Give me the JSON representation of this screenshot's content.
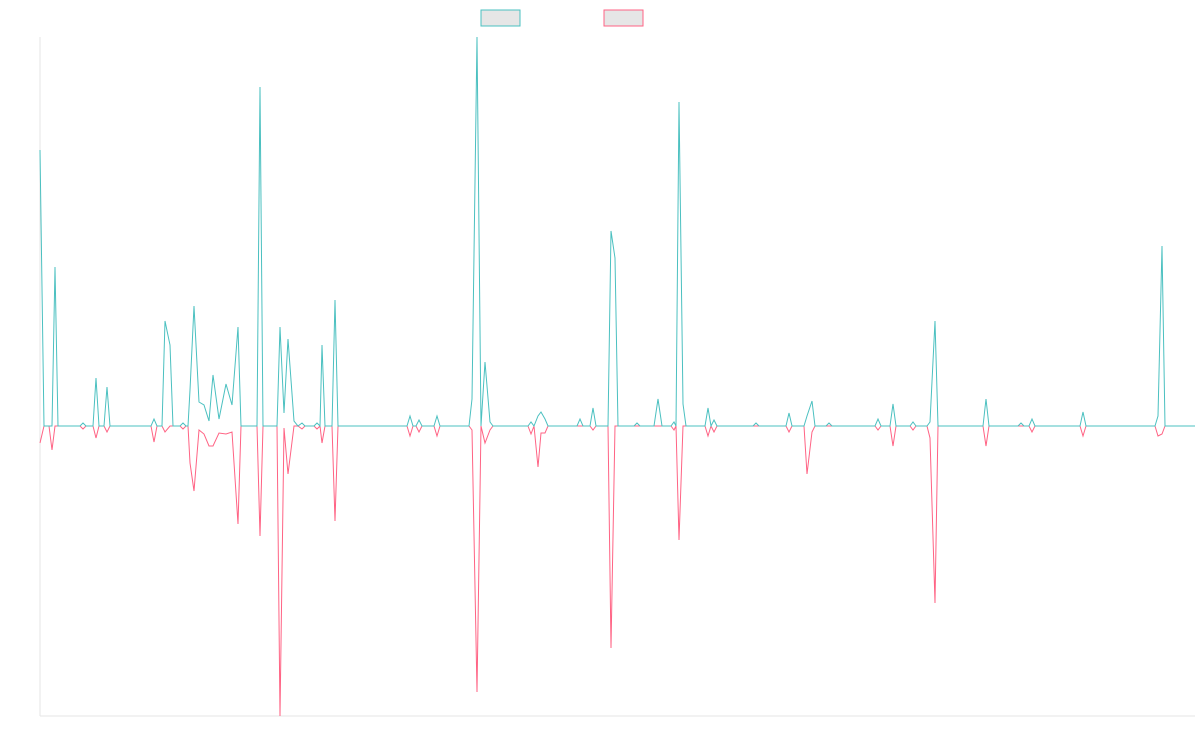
{
  "chart_data": {
    "type": "line",
    "x": [
      0,
      4,
      9,
      12,
      15,
      18,
      40,
      43,
      46,
      53,
      56,
      59,
      64,
      67,
      70,
      111,
      114,
      117,
      122,
      125,
      130,
      133,
      140,
      143,
      146,
      148,
      150,
      154,
      159,
      164,
      169,
      173,
      179,
      186,
      192,
      198,
      201,
      217,
      220,
      223,
      237,
      240,
      244,
      248,
      254,
      258,
      262,
      265,
      274,
      277,
      280,
      282,
      285,
      292,
      295,
      298,
      367,
      370,
      373,
      376,
      379,
      382,
      394,
      397,
      400,
      429,
      432,
      437,
      441,
      445,
      450,
      453,
      488,
      491,
      494,
      498,
      501,
      505,
      508,
      537,
      540,
      543,
      550,
      553,
      556,
      568,
      571,
      575,
      578,
      594,
      597,
      600,
      614,
      618,
      622,
      631,
      634,
      636,
      639,
      643,
      646,
      665,
      668,
      671,
      674,
      677,
      713,
      716,
      719,
      746,
      749,
      752,
      764,
      767,
      772,
      775,
      786,
      789,
      792,
      835,
      838,
      841,
      850,
      853,
      856,
      870,
      873,
      876,
      887,
      890,
      895,
      898,
      943,
      946,
      949,
      978,
      981,
      984,
      989,
      992,
      995,
      1040,
      1043,
      1046,
      1115,
      1118,
      1122,
      1125,
      1155
    ],
    "series": [
      {
        "color": "#ff6384",
        "values": [
          -17,
          0,
          0,
          -24,
          0,
          0,
          0,
          -3,
          0,
          0,
          -12,
          0,
          0,
          -6,
          0,
          0,
          -16,
          0,
          0,
          -6,
          0,
          0,
          0,
          -3,
          0,
          0,
          -37,
          -65,
          -4,
          -8,
          -20,
          -20,
          -7,
          -8,
          -6,
          -98,
          0,
          0,
          -110,
          0,
          0,
          -290,
          -2,
          -48,
          0,
          0,
          -3,
          0,
          0,
          -3,
          0,
          -17,
          0,
          0,
          -95,
          0,
          0,
          -10,
          0,
          0,
          -6,
          0,
          0,
          -10,
          0,
          0,
          -4,
          -266,
          0,
          -17,
          -4,
          0,
          0,
          -8,
          0,
          -41,
          -7,
          -7,
          0,
          0,
          0,
          0,
          0,
          -4,
          0,
          0,
          -222,
          0,
          0,
          0,
          0,
          0,
          0,
          0,
          0,
          0,
          -4,
          0,
          -114,
          0,
          0,
          0,
          -10,
          0,
          -6,
          0,
          0,
          0,
          0,
          0,
          -6,
          0,
          0,
          -48,
          -6,
          0,
          0,
          0,
          0,
          0,
          -4,
          0,
          0,
          -20,
          0,
          0,
          -4,
          0,
          0,
          -12,
          -177,
          0,
          0,
          -20,
          0,
          0,
          0,
          0,
          0,
          -6,
          0,
          0,
          -10,
          0,
          0,
          -10,
          -8,
          0,
          0
        ]
      },
      {
        "color": "#4bc0c0",
        "values": [
          276,
          0,
          0,
          0,
          159,
          0,
          0,
          3,
          0,
          0,
          48,
          0,
          0,
          39,
          0,
          0,
          7,
          0,
          0,
          105,
          81,
          0,
          0,
          3,
          0,
          0,
          36,
          120,
          24,
          21,
          5,
          51,
          7,
          42,
          21,
          99,
          0,
          0,
          339,
          0,
          0,
          99,
          13,
          87,
          5,
          0,
          3,
          0,
          0,
          3,
          0,
          81,
          0,
          0,
          126,
          0,
          0,
          10,
          0,
          0,
          6,
          0,
          0,
          10,
          0,
          0,
          27,
          389,
          0,
          64,
          4,
          0,
          0,
          4,
          0,
          10,
          14,
          7,
          0,
          0,
          7,
          0,
          0,
          18,
          0,
          0,
          195,
          168,
          0,
          0,
          3,
          0,
          0,
          27,
          0,
          0,
          4,
          0,
          324,
          22,
          0,
          0,
          18,
          0,
          6,
          0,
          0,
          3,
          0,
          0,
          13,
          0,
          0,
          10,
          25,
          0,
          0,
          3,
          0,
          0,
          7,
          0,
          0,
          22,
          0,
          0,
          4,
          0,
          0,
          4,
          105,
          0,
          0,
          27,
          0,
          0,
          3,
          0,
          0,
          7,
          0,
          0,
          14,
          0,
          0,
          10,
          180,
          0,
          0
        ]
      }
    ],
    "legend_order": [
      1,
      0
    ],
    "xlim": [
      0,
      1155
    ],
    "ylim": [
      -290,
      389
    ]
  }
}
